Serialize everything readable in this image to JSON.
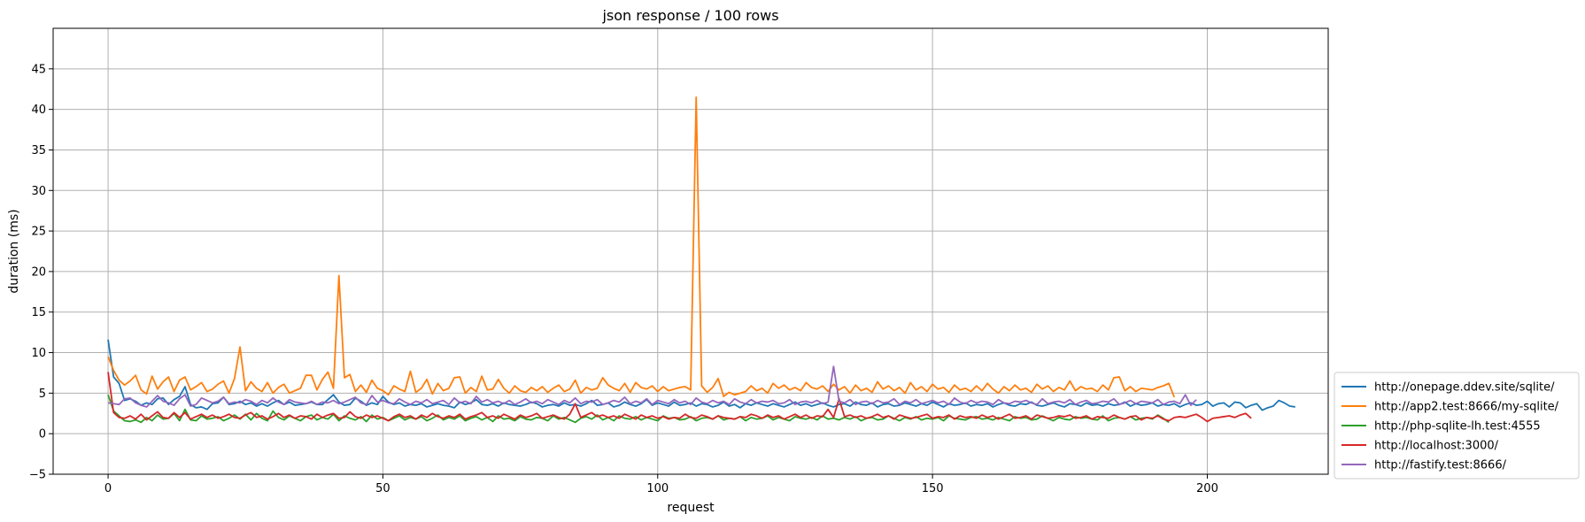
{
  "chart_data": {
    "type": "line",
    "title": "json response / 100 rows",
    "xlabel": "request",
    "ylabel": "duration (ms)",
    "xlim": [
      -10,
      222
    ],
    "ylim": [
      -5,
      50
    ],
    "xticks": [
      0,
      50,
      100,
      150,
      200
    ],
    "yticks": [
      -5,
      0,
      5,
      10,
      15,
      20,
      25,
      30,
      35,
      40,
      45
    ],
    "grid": true,
    "legend_position": "outside-right-bottom",
    "series": [
      {
        "name": "http://onepage.ddev.site/sqlite/",
        "color": "#1f77b4",
        "values": [
          11.6,
          7.0,
          6.2,
          4.1,
          4.3,
          4.0,
          3.5,
          3.8,
          3.6,
          4.3,
          4.4,
          3.6,
          4.2,
          4.6,
          5.8,
          3.6,
          3.2,
          3.3,
          3.0,
          3.7,
          3.8,
          4.5,
          3.6,
          3.7,
          4.0,
          3.6,
          3.8,
          3.4,
          3.7,
          3.4,
          3.8,
          4.1,
          3.6,
          3.9,
          3.5,
          3.6,
          3.7,
          3.9,
          3.6,
          3.6,
          4.2,
          4.8,
          3.9,
          3.5,
          3.6,
          4.4,
          4.0,
          3.5,
          3.8,
          3.6,
          4.6,
          3.9,
          3.6,
          3.8,
          3.4,
          3.6,
          3.5,
          3.7,
          3.3,
          3.5,
          3.7,
          3.5,
          3.4,
          3.2,
          3.9,
          3.6,
          3.8,
          4.2,
          3.6,
          3.5,
          3.7,
          3.4,
          3.8,
          3.6,
          3.5,
          3.4,
          3.6,
          3.9,
          3.7,
          3.3,
          3.5,
          3.6,
          3.4,
          3.8,
          3.5,
          3.6,
          3.4,
          3.7,
          4.1,
          3.5,
          3.6,
          3.8,
          3.3,
          3.5,
          3.9,
          3.6,
          3.4,
          3.7,
          4.2,
          3.5,
          3.8,
          3.6,
          3.4,
          3.9,
          3.5,
          3.6,
          3.8,
          3.4,
          3.7,
          3.6,
          3.3,
          3.5,
          3.9,
          3.4,
          3.6,
          3.2,
          3.7,
          3.5,
          3.8,
          3.6,
          3.4,
          3.7,
          3.5,
          3.3,
          3.6,
          3.9,
          3.5,
          3.7,
          3.4,
          3.6,
          3.8,
          3.5,
          3.3,
          3.6,
          3.7,
          3.4,
          3.9,
          3.6,
          3.5,
          3.8,
          3.3,
          3.6,
          3.7,
          3.4,
          3.5,
          3.8,
          3.6,
          3.4,
          3.7,
          3.5,
          3.9,
          3.6,
          3.3,
          3.7,
          3.5,
          3.6,
          3.8,
          3.4,
          3.6,
          3.5,
          3.7,
          3.3,
          3.6,
          3.8,
          3.5,
          3.4,
          3.7,
          3.6,
          3.9,
          3.5,
          3.4,
          3.6,
          3.8,
          3.5,
          3.3,
          3.7,
          3.6,
          3.4,
          3.8,
          3.5,
          3.6,
          3.4,
          3.7,
          3.5,
          3.6,
          3.9,
          3.4,
          3.7,
          3.5,
          3.6,
          3.8,
          3.4,
          3.6,
          3.5,
          3.7,
          3.3,
          3.6,
          3.8,
          3.5,
          3.6,
          4.0,
          3.4,
          3.7,
          3.8,
          3.3,
          3.9,
          3.8,
          3.2,
          3.5,
          3.7,
          2.9,
          3.2,
          3.4,
          4.1,
          3.8,
          3.4,
          3.3
        ]
      },
      {
        "name": "http://app2.test:8666/my-sqlite/",
        "color": "#ff7f0e",
        "values": [
          9.5,
          7.8,
          6.6,
          6.0,
          6.5,
          7.2,
          5.4,
          4.9,
          7.1,
          5.5,
          6.4,
          7.0,
          5.2,
          6.6,
          7.0,
          5.4,
          5.8,
          6.3,
          5.2,
          5.5,
          6.1,
          6.5,
          5.0,
          6.8,
          10.7,
          5.3,
          6.4,
          5.6,
          5.2,
          6.3,
          5.0,
          5.7,
          6.1,
          5.0,
          5.3,
          5.6,
          7.2,
          7.2,
          5.4,
          6.7,
          7.6,
          5.6,
          19.5,
          6.9,
          7.3,
          5.2,
          6.0,
          5.1,
          6.6,
          5.6,
          5.3,
          4.8,
          5.9,
          5.5,
          5.2,
          7.7,
          5.1,
          5.6,
          6.7,
          4.9,
          6.2,
          5.3,
          5.6,
          6.9,
          7.0,
          5.0,
          5.7,
          5.2,
          7.1,
          5.4,
          5.5,
          6.7,
          5.6,
          5.0,
          5.9,
          5.3,
          5.1,
          5.7,
          5.3,
          5.8,
          5.1,
          5.6,
          6.0,
          5.2,
          5.5,
          6.6,
          5.0,
          5.7,
          5.4,
          5.6,
          6.9,
          6.0,
          5.6,
          5.3,
          6.2,
          5.1,
          6.3,
          5.7,
          5.5,
          5.9,
          5.2,
          5.8,
          5.3,
          5.5,
          5.7,
          5.8,
          5.4,
          41.5,
          5.9,
          5.1,
          5.7,
          6.8,
          4.6,
          5.1,
          4.8,
          5.0,
          5.2,
          5.9,
          5.3,
          5.6,
          5.0,
          6.2,
          5.6,
          6.0,
          5.4,
          5.7,
          5.3,
          6.3,
          5.7,
          5.5,
          5.9,
          5.2,
          6.1,
          5.4,
          5.8,
          5.0,
          6.0,
          5.3,
          5.6,
          5.1,
          6.4,
          5.5,
          5.9,
          5.3,
          5.7,
          5.0,
          6.3,
          5.4,
          5.8,
          5.2,
          6.1,
          5.5,
          5.7,
          5.1,
          6.0,
          5.4,
          5.6,
          5.2,
          5.9,
          5.3,
          6.2,
          5.5,
          5.0,
          5.8,
          5.3,
          6.0,
          5.4,
          5.6,
          5.1,
          6.1,
          5.5,
          5.9,
          5.2,
          5.7,
          5.4,
          6.5,
          5.3,
          5.8,
          5.5,
          5.6,
          5.2,
          6.0,
          5.4,
          6.9,
          7.0,
          5.3,
          5.8,
          5.2,
          5.6,
          5.5,
          5.4,
          5.7,
          5.9,
          6.2,
          4.5
        ]
      },
      {
        "name": "http://php-sqlite-lh.test:4555",
        "color": "#2ca02c",
        "values": [
          4.8,
          2.8,
          2.2,
          1.6,
          1.5,
          1.7,
          1.4,
          2.0,
          1.6,
          2.3,
          1.8,
          1.9,
          2.5,
          1.6,
          3.0,
          1.7,
          1.6,
          2.2,
          1.8,
          1.9,
          2.1,
          1.6,
          1.9,
          2.3,
          1.8,
          2.4,
          1.7,
          2.5,
          1.9,
          1.6,
          2.8,
          2.0,
          1.7,
          2.2,
          1.9,
          1.6,
          2.1,
          2.3,
          1.7,
          2.0,
          1.8,
          2.4,
          1.6,
          2.2,
          1.9,
          1.7,
          2.1,
          1.5,
          2.3,
          1.8,
          2.0,
          1.6,
          1.9,
          2.2,
          1.7,
          2.0,
          1.8,
          2.1,
          1.6,
          1.9,
          2.3,
          1.7,
          2.0,
          1.8,
          2.2,
          1.6,
          1.9,
          2.1,
          1.7,
          2.0,
          1.5,
          2.2,
          1.8,
          1.9,
          1.6,
          2.1,
          1.8,
          1.7,
          2.0,
          1.9,
          1.6,
          2.2,
          1.8,
          2.0,
          1.7,
          1.4,
          1.9,
          2.1,
          1.8,
          2.3,
          1.7,
          2.0,
          1.6,
          2.2,
          1.9,
          1.8,
          2.1,
          1.7,
          2.0,
          1.8,
          1.6,
          2.2,
          1.9,
          2.0,
          1.7,
          1.8,
          2.1,
          1.6,
          1.9,
          2.0,
          1.8,
          2.2,
          1.7,
          1.9,
          1.8,
          2.1,
          1.6,
          2.0,
          1.8,
          1.9,
          2.2,
          1.7,
          2.0,
          1.8,
          1.6,
          2.1,
          1.9,
          1.8,
          2.0,
          1.7,
          2.2,
          1.8,
          1.9,
          1.7,
          2.0,
          1.8,
          2.1,
          1.6,
          1.9,
          2.0,
          1.7,
          1.8,
          2.2,
          1.9,
          1.6,
          2.0,
          1.8,
          2.1,
          1.7,
          1.9,
          1.8,
          2.0,
          1.6,
          2.2,
          1.9,
          1.8,
          1.7,
          2.0,
          2.1,
          1.8,
          1.9,
          1.7,
          2.0,
          1.8,
          1.6,
          2.1,
          1.9,
          2.0,
          1.7,
          1.8,
          2.2,
          1.9,
          1.6,
          2.0,
          1.8,
          1.7,
          2.1,
          1.9,
          2.0,
          1.8,
          1.7,
          2.2,
          1.6,
          1.9,
          2.0,
          1.8,
          2.1,
          1.7,
          1.9,
          2.0,
          1.8,
          2.3,
          1.9,
          1.4
        ]
      },
      {
        "name": "http://localhost:3000/",
        "color": "#d62728",
        "values": [
          7.6,
          2.6,
          2.0,
          1.9,
          2.2,
          1.8,
          2.4,
          1.7,
          2.2,
          2.7,
          2.0,
          1.9,
          2.6,
          2.0,
          2.6,
          1.8,
          2.1,
          2.4,
          2.0,
          2.3,
          1.9,
          2.1,
          2.4,
          2.0,
          1.9,
          2.3,
          2.6,
          2.0,
          2.2,
          1.8,
          2.1,
          2.5,
          2.0,
          2.3,
          1.9,
          2.2,
          2.1,
          1.8,
          2.4,
          2.0,
          2.3,
          2.5,
          1.9,
          2.0,
          2.7,
          2.1,
          1.9,
          2.3,
          2.0,
          2.2,
          1.9,
          1.6,
          2.1,
          2.4,
          2.0,
          2.2,
          1.8,
          2.3,
          2.0,
          2.5,
          2.1,
          1.9,
          2.2,
          2.0,
          2.4,
          1.8,
          2.1,
          2.3,
          2.6,
          2.0,
          2.2,
          1.9,
          2.4,
          2.1,
          1.8,
          2.3,
          2.0,
          2.2,
          2.5,
          1.9,
          2.1,
          2.3,
          2.0,
          1.8,
          2.4,
          3.7,
          2.0,
          2.3,
          2.6,
          2.1,
          2.3,
          2.0,
          2.2,
          1.9,
          2.4,
          2.1,
          1.8,
          2.3,
          2.0,
          2.2,
          1.9,
          2.1,
          1.8,
          2.0,
          1.9,
          2.4,
          2.0,
          1.9,
          2.3,
          2.1,
          1.8,
          2.2,
          2.0,
          1.9,
          1.8,
          2.1,
          2.0,
          2.4,
          2.2,
          1.9,
          2.3,
          2.0,
          2.2,
          1.8,
          2.1,
          2.4,
          2.0,
          2.3,
          1.9,
          2.2,
          2.1,
          3.0,
          2.0,
          4.3,
          2.1,
          2.3,
          2.0,
          2.2,
          1.9,
          2.1,
          2.4,
          2.0,
          2.2,
          1.8,
          2.3,
          2.1,
          1.9,
          2.0,
          2.2,
          2.4,
          1.9,
          2.1,
          2.0,
          2.3,
          1.8,
          2.2,
          2.0,
          2.1,
          1.9,
          2.3,
          2.0,
          2.2,
          1.8,
          2.1,
          2.4,
          1.9,
          2.0,
          2.2,
          1.8,
          2.3,
          2.1,
          1.9,
          2.0,
          2.2,
          2.1,
          2.3,
          1.9,
          2.0,
          2.2,
          1.8,
          2.1,
          2.0,
          1.9,
          2.3,
          2.0,
          1.8,
          2.1,
          2.2,
          1.7,
          2.0,
          1.9,
          2.2,
          1.8,
          1.6,
          2.0,
          2.1,
          2.0,
          2.2,
          2.4,
          2.0,
          1.5,
          1.9,
          2.0,
          2.1,
          2.2,
          2.0,
          2.3,
          2.5,
          1.9
        ]
      },
      {
        "name": "http://fastify.test:8666/",
        "color": "#9467bd",
        "values": [
          3.8,
          3.7,
          3.6,
          4.3,
          4.4,
          3.8,
          3.5,
          3.3,
          4.0,
          4.7,
          4.0,
          3.8,
          3.5,
          4.3,
          4.8,
          3.4,
          3.6,
          4.4,
          4.1,
          3.8,
          4.0,
          4.5,
          3.7,
          3.9,
          3.8,
          4.2,
          4.0,
          3.6,
          4.1,
          3.8,
          4.4,
          3.9,
          3.6,
          4.2,
          3.9,
          3.8,
          3.7,
          4.0,
          3.6,
          3.9,
          3.8,
          4.1,
          3.7,
          3.9,
          4.2,
          4.5,
          3.8,
          3.6,
          4.7,
          3.9,
          4.1,
          3.8,
          3.7,
          4.3,
          3.9,
          3.6,
          4.0,
          3.8,
          4.2,
          3.7,
          3.9,
          4.1,
          3.6,
          4.4,
          3.8,
          4.0,
          3.7,
          4.6,
          3.9,
          4.2,
          3.8,
          4.0,
          3.7,
          4.1,
          3.6,
          3.9,
          4.3,
          3.8,
          4.0,
          3.7,
          4.2,
          3.9,
          3.6,
          4.1,
          3.8,
          4.4,
          3.7,
          4.0,
          3.9,
          4.2,
          3.6,
          3.8,
          4.1,
          3.9,
          4.5,
          3.7,
          4.0,
          3.8,
          4.3,
          3.6,
          4.1,
          3.9,
          3.7,
          4.2,
          3.8,
          4.0,
          3.6,
          4.4,
          3.9,
          3.7,
          4.1,
          3.8,
          4.0,
          3.6,
          4.3,
          3.9,
          3.7,
          4.2,
          3.8,
          4.0,
          3.9,
          4.1,
          3.7,
          3.8,
          4.2,
          3.6,
          3.9,
          4.0,
          3.8,
          4.1,
          3.7,
          3.9,
          8.3,
          4.0,
          3.8,
          4.2,
          3.6,
          3.9,
          4.0,
          3.7,
          4.1,
          3.8,
          3.9,
          4.3,
          3.6,
          4.0,
          3.8,
          4.2,
          3.7,
          3.9,
          4.1,
          3.8,
          4.0,
          3.6,
          4.4,
          3.9,
          3.7,
          4.1,
          3.8,
          4.0,
          3.9,
          3.6,
          4.2,
          3.8,
          3.7,
          4.0,
          3.9,
          4.1,
          3.8,
          3.6,
          4.3,
          3.7,
          3.9,
          4.0,
          3.8,
          4.2,
          3.6,
          3.9,
          4.1,
          3.7,
          3.8,
          4.0,
          3.9,
          4.3,
          3.6,
          3.8,
          4.1,
          3.7,
          4.0,
          3.9,
          3.8,
          4.2,
          3.6,
          3.9,
          4.0,
          3.7,
          4.8,
          3.5,
          4.2
        ]
      }
    ]
  }
}
